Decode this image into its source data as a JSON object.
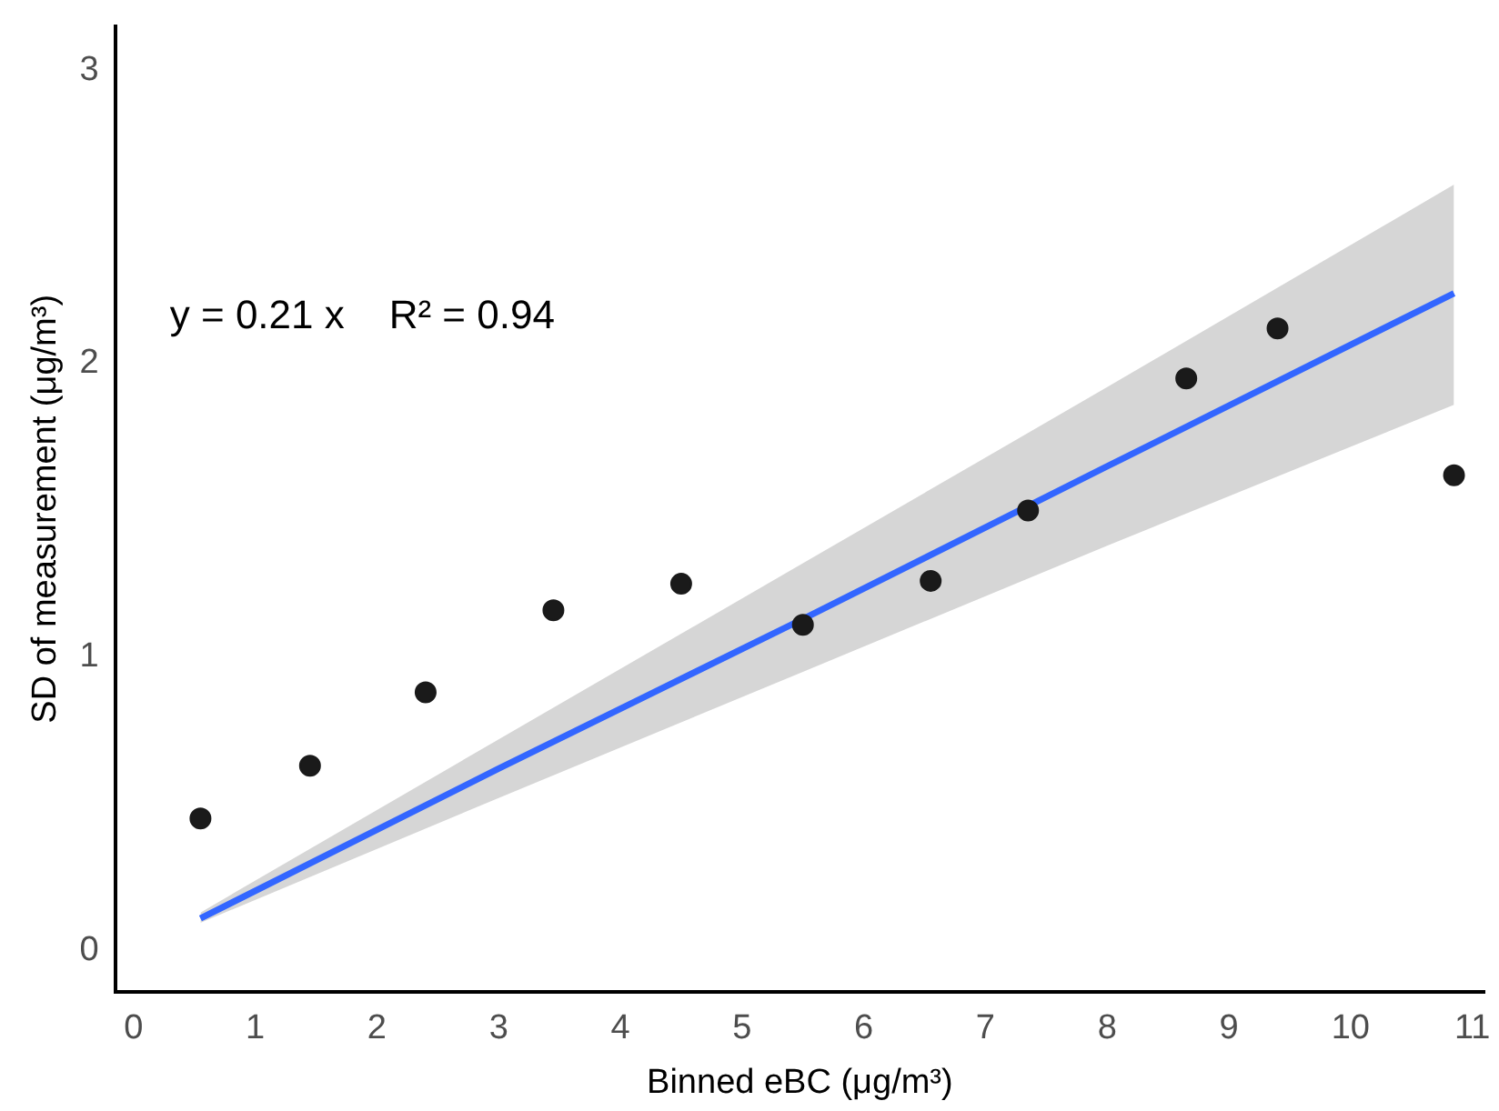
{
  "chart_data": {
    "type": "scatter",
    "xlabel": "Binned eBC (μg/m³)",
    "ylabel": "SD of measurement (μg/m³)",
    "annotations": [
      "y = 0.21 x    R² = 0.94"
    ],
    "xlim": [
      -0.15,
      11.1
    ],
    "xticks": [
      0,
      1,
      2,
      3,
      4,
      5,
      6,
      7,
      8,
      9,
      10,
      11
    ],
    "ylim": [
      -0.14,
      3.15
    ],
    "yticks": [
      0,
      1,
      2,
      3
    ],
    "grid": false,
    "legend": false,
    "series": [
      {
        "type": "line",
        "color": "#3366ff",
        "x": [
          0.55,
          3,
          5.5,
          8,
          10.85
        ],
        "values": [
          0.11,
          0.62,
          1.13,
          1.65,
          2.24
        ],
        "lower": [
          0.095,
          0.52,
          0.95,
          1.38,
          1.86
        ],
        "upper": [
          0.13,
          0.72,
          1.32,
          1.92,
          2.61
        ],
        "marker": "none"
      },
      {
        "color": "#1a1a1a",
        "x": [
          0.55,
          1.45,
          2.4,
          3.45,
          4.5,
          5.5,
          6.55,
          7.35,
          8.65,
          9.4,
          10.85
        ],
        "values": [
          0.45,
          0.63,
          0.88,
          1.16,
          1.25,
          1.11,
          1.26,
          1.5,
          1.95,
          2.12,
          1.62
        ],
        "marker": "circle"
      }
    ]
  }
}
